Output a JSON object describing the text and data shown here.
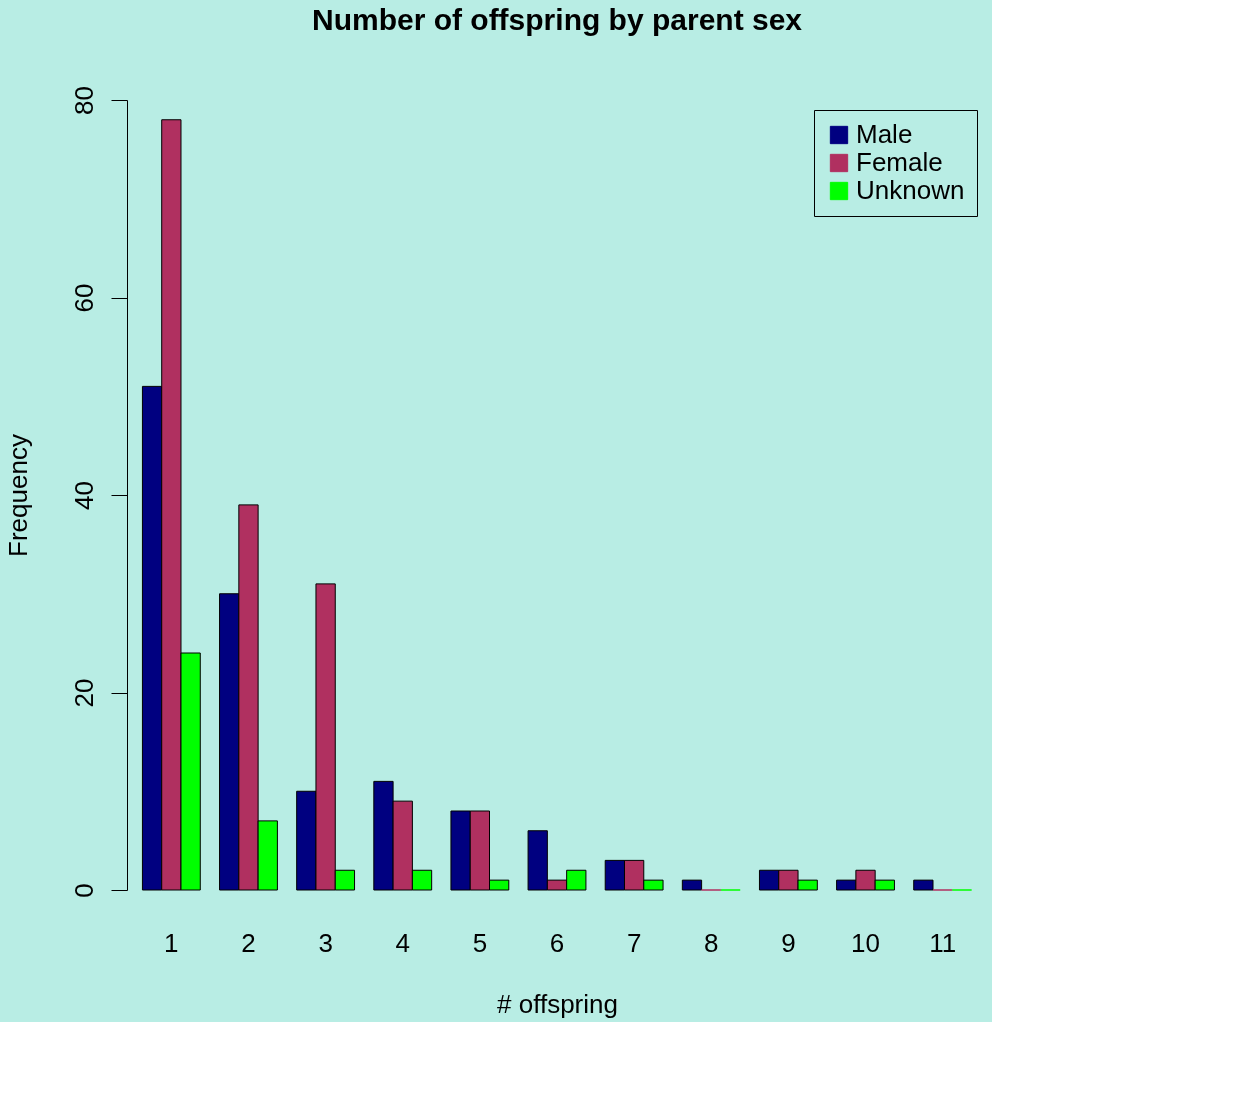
{
  "chart_data": {
    "type": "bar",
    "title": "Number of offspring by parent sex",
    "xlabel": "# offspring",
    "ylabel": "Frequency",
    "categories": [
      "1",
      "2",
      "3",
      "4",
      "5",
      "6",
      "7",
      "8",
      "9",
      "10",
      "11"
    ],
    "series": [
      {
        "name": "Male",
        "color": "#000080",
        "values": [
          51,
          30,
          10,
          11,
          8,
          6,
          3,
          1,
          2,
          1,
          1
        ]
      },
      {
        "name": "Female",
        "color": "#b03060",
        "values": [
          78,
          39,
          31,
          9,
          8,
          1,
          3,
          0,
          2,
          2,
          0
        ]
      },
      {
        "name": "Unknown",
        "color": "#00ff00",
        "values": [
          24,
          7,
          2,
          2,
          1,
          2,
          1,
          0,
          1,
          1,
          0
        ]
      }
    ],
    "ylim": [
      0,
      80
    ],
    "yticks": [
      0,
      20,
      40,
      60,
      80
    ],
    "grid": false,
    "legend": "top right"
  }
}
